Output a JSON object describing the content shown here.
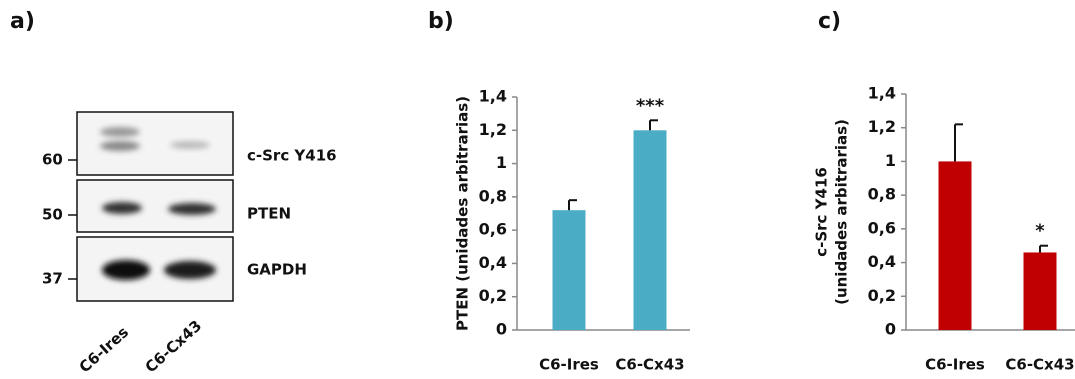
{
  "blot": {
    "label": "a)",
    "mw_markers": [
      "60",
      "50",
      "37"
    ],
    "bands": [
      "c-Src Y416",
      "PTEN",
      "GAPDH"
    ],
    "lanes": [
      "C6-Ires",
      "C6-Cx43"
    ]
  },
  "chart_data": [
    {
      "type": "bar",
      "panel_label": "b)",
      "ylabel": [
        "PTEN (unidades arbitrarias)"
      ],
      "categories": [
        "C6-Ires",
        "C6-Cx43"
      ],
      "values": [
        0.72,
        1.2
      ],
      "errors": [
        0.06,
        0.06
      ],
      "color": "#4bacc6",
      "annotations": [
        {
          "category": "C6-Cx43",
          "text": "***"
        }
      ],
      "ylim": [
        0,
        1.4
      ],
      "yticks": [
        0,
        {
          "value": 0.2,
          "label": "0,2"
        },
        {
          "value": 0.4,
          "label": "0,4"
        },
        {
          "value": 0.6,
          "label": "0,6"
        },
        {
          "value": 0.8,
          "label": "0,8"
        },
        1,
        {
          "value": 1.2,
          "label": "1,2"
        },
        {
          "value": 1.4,
          "label": "1,4"
        }
      ]
    },
    {
      "type": "bar",
      "panel_label": "c)",
      "ylabel": [
        "c-Src Y416",
        "(unidades arbitrarias)"
      ],
      "categories": [
        "C6-Ires",
        "C6-Cx43"
      ],
      "values": [
        1.0,
        0.46
      ],
      "errors": [
        0.22,
        0.04
      ],
      "color": "#c00000",
      "annotations": [
        {
          "category": "C6-Cx43",
          "text": "*"
        }
      ],
      "ylim": [
        0,
        1.4
      ],
      "yticks": [
        0,
        {
          "value": 0.2,
          "label": "0,2"
        },
        {
          "value": 0.4,
          "label": "0,4"
        },
        {
          "value": 0.6,
          "label": "0,6"
        },
        {
          "value": 0.8,
          "label": "0,8"
        },
        1,
        {
          "value": 1.2,
          "label": "1,2"
        },
        {
          "value": 1.4,
          "label": "1,4"
        }
      ]
    }
  ]
}
